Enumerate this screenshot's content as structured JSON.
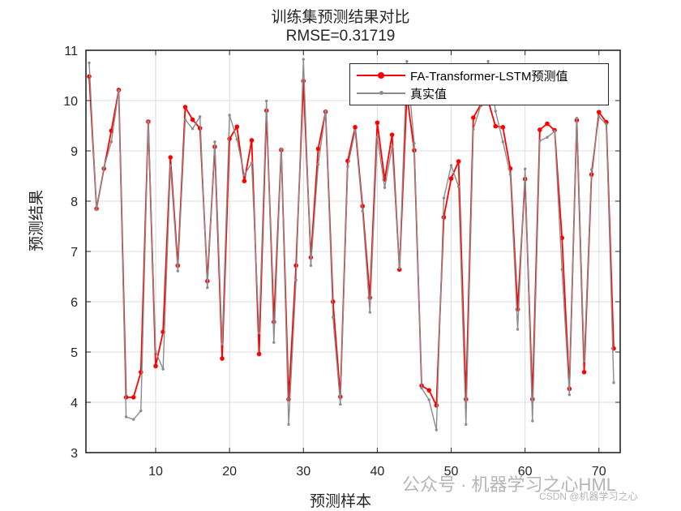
{
  "title": "训练集预测结果对比",
  "subtitle": "RMSE=0.31719",
  "xlabel": "预测样本",
  "ylabel": "预测结果",
  "legend": {
    "pred_label": "FA-Transformer-LSTM预测值",
    "true_label": "真实值"
  },
  "watermark": {
    "line1": "公众号 · 机器学习之心HML",
    "line2": "CSDN @机器学习之心"
  },
  "colors": {
    "pred": "#ff0000",
    "true": "#8c8c8c",
    "grid": "#dcdcdc",
    "axis": "#262626"
  },
  "chart_data": {
    "type": "line",
    "title": "训练集预测结果对比",
    "subtitle": "RMSE=0.31719",
    "xlabel": "预测样本",
    "ylabel": "预测结果",
    "xlim": [
      1,
      72
    ],
    "ylim": [
      3,
      11
    ],
    "xticks": [
      10,
      20,
      30,
      40,
      50,
      60,
      70
    ],
    "yticks": [
      3,
      4,
      5,
      6,
      7,
      8,
      9,
      10,
      11
    ],
    "grid": true,
    "legend_position": "upper right",
    "x": [
      1,
      2,
      3,
      4,
      5,
      6,
      7,
      8,
      9,
      10,
      11,
      12,
      13,
      14,
      15,
      16,
      17,
      18,
      19,
      20,
      21,
      22,
      23,
      24,
      25,
      26,
      27,
      28,
      29,
      30,
      31,
      32,
      33,
      34,
      35,
      36,
      37,
      38,
      39,
      40,
      41,
      42,
      43,
      44,
      45,
      46,
      47,
      48,
      49,
      50,
      51,
      52,
      53,
      54,
      55,
      56,
      57,
      58,
      59,
      60,
      61,
      62,
      63,
      64,
      65,
      66,
      67,
      68,
      69,
      70,
      71,
      72
    ],
    "series": [
      {
        "name": "FA-Transformer-LSTM预测值",
        "color": "#ff0000",
        "marker": "o",
        "values": [
          10.48,
          7.85,
          8.65,
          9.4,
          10.21,
          4.1,
          4.1,
          4.6,
          9.58,
          4.72,
          5.4,
          8.87,
          6.72,
          9.87,
          9.62,
          9.45,
          6.41,
          9.08,
          4.87,
          9.24,
          9.48,
          8.4,
          9.21,
          4.96,
          9.8,
          5.6,
          9.02,
          4.06,
          6.72,
          10.39,
          6.88,
          9.04,
          9.78,
          6.0,
          4.11,
          8.8,
          9.47,
          7.9,
          6.08,
          9.56,
          8.43,
          9.32,
          6.64,
          10.12,
          9.01,
          4.33,
          4.24,
          3.94,
          7.68,
          8.45,
          8.79,
          4.06,
          9.66,
          9.92,
          10.0,
          9.49,
          9.47,
          8.65,
          5.85,
          8.44,
          4.06,
          9.42,
          9.54,
          9.41,
          7.27,
          4.27,
          9.61,
          4.6,
          8.53,
          9.77,
          9.57,
          5.07
        ]
      },
      {
        "name": "真实值",
        "color": "#8c8c8c",
        "marker": ".",
        "values": [
          10.75,
          7.83,
          8.67,
          9.18,
          10.2,
          3.71,
          3.66,
          3.83,
          9.58,
          5.01,
          4.66,
          8.71,
          6.61,
          9.62,
          9.44,
          9.68,
          6.28,
          9.18,
          5.16,
          9.71,
          9.23,
          8.52,
          8.76,
          5.38,
          9.99,
          5.19,
          9.03,
          3.56,
          6.43,
          10.82,
          6.72,
          8.73,
          9.79,
          5.69,
          3.96,
          8.69,
          9.4,
          7.8,
          5.79,
          9.27,
          8.27,
          9.08,
          6.67,
          10.78,
          9.15,
          4.28,
          4.05,
          3.45,
          8.06,
          8.71,
          8.29,
          3.56,
          9.43,
          9.9,
          10.78,
          9.79,
          9.18,
          8.53,
          5.45,
          8.64,
          3.63,
          9.2,
          9.27,
          9.39,
          6.64,
          4.15,
          9.65,
          4.82,
          8.63,
          9.68,
          9.53,
          4.39
        ]
      }
    ]
  }
}
